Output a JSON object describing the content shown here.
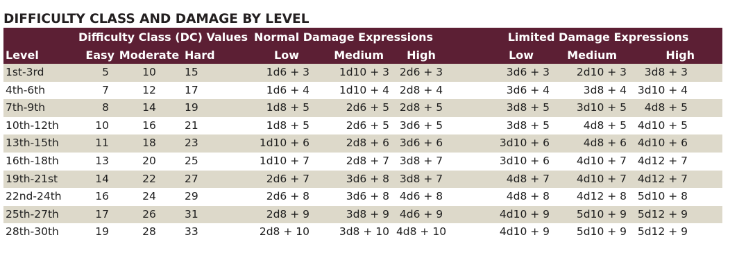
{
  "title": "DIFFICULTY CLASS AND DAMAGE BY LEVEL",
  "group_headers": {
    "dc": "Difficulty Class (DC) Values",
    "normal": "Normal Damage Expressions",
    "limited": "Limited Damage Expressions"
  },
  "column_headers": {
    "level": "Level",
    "easy": "Easy",
    "moderate": "Moderate",
    "hard": "Hard",
    "normal_low": "Low",
    "normal_medium": "Medium",
    "normal_high": "High",
    "limited_low": "Low",
    "limited_medium": "Medium",
    "limited_high": "High"
  },
  "rows": [
    {
      "level": "1st-3rd",
      "easy": "5",
      "moderate": "10",
      "hard": "15",
      "normal_low": "1d6 + 3",
      "normal_medium": "1d10 + 3",
      "normal_high": "2d6 + 3",
      "limited_low": "3d6 + 3",
      "limited_medium": "2d10 + 3",
      "limited_high": "3d8 + 3"
    },
    {
      "level": "4th-6th",
      "easy": "7",
      "moderate": "12",
      "hard": "17",
      "normal_low": "1d6 + 4",
      "normal_medium": "1d10 + 4",
      "normal_high": "2d8 + 4",
      "limited_low": "3d6 + 4",
      "limited_medium": "3d8 + 4",
      "limited_high": "3d10 + 4"
    },
    {
      "level": "7th-9th",
      "easy": "8",
      "moderate": "14",
      "hard": "19",
      "normal_low": "1d8 + 5",
      "normal_medium": "2d6 + 5",
      "normal_high": "2d8 + 5",
      "limited_low": "3d8 + 5",
      "limited_medium": "3d10 + 5",
      "limited_high": "4d8 + 5"
    },
    {
      "level": "10th-12th",
      "easy": "10",
      "moderate": "16",
      "hard": "21",
      "normal_low": "1d8 + 5",
      "normal_medium": "2d6 + 5",
      "normal_high": "3d6 + 5",
      "limited_low": "3d8 + 5",
      "limited_medium": "4d8 + 5",
      "limited_high": "4d10 + 5"
    },
    {
      "level": "13th-15th",
      "easy": "11",
      "moderate": "18",
      "hard": "23",
      "normal_low": "1d10 + 6",
      "normal_medium": "2d8 + 6",
      "normal_high": "3d6 + 6",
      "limited_low": "3d10 + 6",
      "limited_medium": "4d8 + 6",
      "limited_high": "4d10 + 6"
    },
    {
      "level": "16th-18th",
      "easy": "13",
      "moderate": "20",
      "hard": "25",
      "normal_low": "1d10 + 7",
      "normal_medium": "2d8 + 7",
      "normal_high": "3d8 + 7",
      "limited_low": "3d10 + 6",
      "limited_medium": "4d10 + 7",
      "limited_high": "4d12 + 7"
    },
    {
      "level": "19th-21st",
      "easy": "14",
      "moderate": "22",
      "hard": "27",
      "normal_low": "2d6 + 7",
      "normal_medium": "3d6 + 8",
      "normal_high": "3d8 + 7",
      "limited_low": "4d8 + 7",
      "limited_medium": "4d10 + 7",
      "limited_high": "4d12 + 7"
    },
    {
      "level": "22nd-24th",
      "easy": "16",
      "moderate": "24",
      "hard": "29",
      "normal_low": "2d6 + 8",
      "normal_medium": "3d6 + 8",
      "normal_high": "4d6 + 8",
      "limited_low": "4d8 + 8",
      "limited_medium": "4d12 + 8",
      "limited_high": "5d10 + 8"
    },
    {
      "level": "25th-27th",
      "easy": "17",
      "moderate": "26",
      "hard": "31",
      "normal_low": "2d8 + 9",
      "normal_medium": "3d8 + 9",
      "normal_high": "4d6 + 9",
      "limited_low": "4d10 + 9",
      "limited_medium": "5d10 + 9",
      "limited_high": "5d12 + 9"
    },
    {
      "level": "28th-30th",
      "easy": "19",
      "moderate": "28",
      "hard": "33",
      "normal_low": "2d8 + 10",
      "normal_medium": "3d8 + 10",
      "normal_high": "4d8 + 10",
      "limited_low": "4d10 + 9",
      "limited_medium": "5d10 + 9",
      "limited_high": "5d12 + 9"
    }
  ],
  "colors": {
    "header_background": "#5c1f34",
    "header_text": "#ffffff",
    "shaded_row": "#ddd9ca",
    "plain_row": "#ffffff"
  }
}
